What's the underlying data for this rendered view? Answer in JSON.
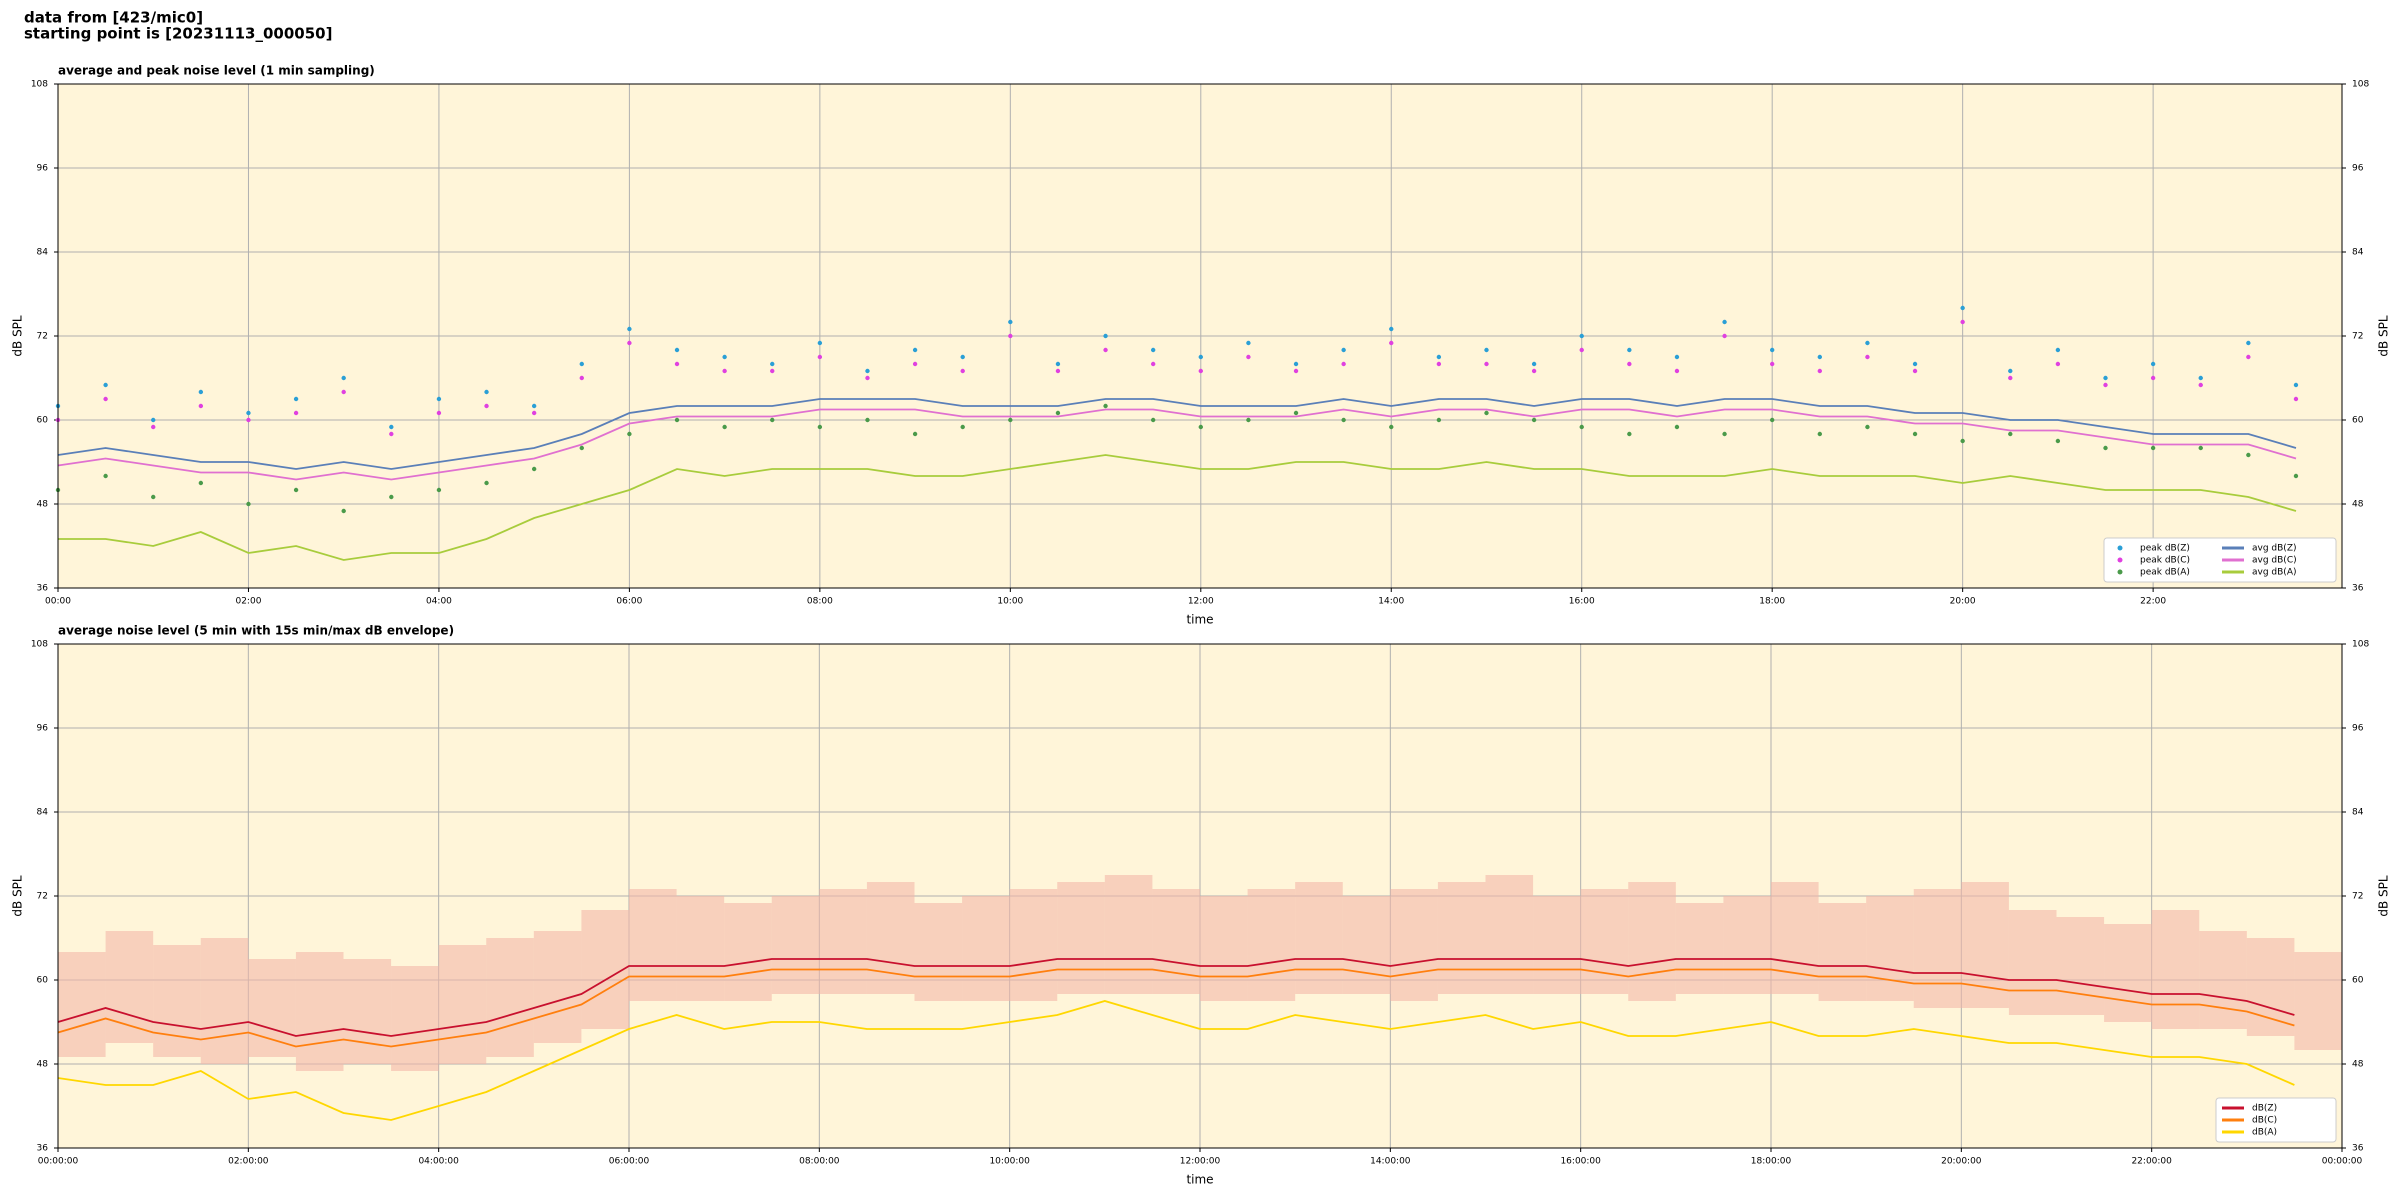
{
  "header": {
    "line1": "data from [423/mic0]",
    "line2": "starting point is [20231113_000050]"
  },
  "chart_data": [
    {
      "type": "line",
      "title": "average and peak noise level (1 min sampling)",
      "xlabel": "time",
      "ylabel": "dB SPL",
      "x": [
        "00:00",
        "00:30",
        "01:00",
        "01:30",
        "02:00",
        "02:30",
        "03:00",
        "03:30",
        "04:00",
        "04:30",
        "05:00",
        "05:30",
        "06:00",
        "06:30",
        "07:00",
        "07:30",
        "08:00",
        "08:30",
        "09:00",
        "09:30",
        "10:00",
        "10:30",
        "11:00",
        "11:30",
        "12:00",
        "12:30",
        "13:00",
        "13:30",
        "14:00",
        "14:30",
        "15:00",
        "15:30",
        "16:00",
        "16:30",
        "17:00",
        "17:30",
        "18:00",
        "18:30",
        "19:00",
        "19:30",
        "20:00",
        "20:30",
        "21:00",
        "21:30",
        "22:00",
        "22:30",
        "23:00",
        "23:30"
      ],
      "xlim": [
        "00:00",
        "23:59"
      ],
      "xticks": [
        "00:00",
        "02:00",
        "04:00",
        "06:00",
        "08:00",
        "10:00",
        "12:00",
        "14:00",
        "16:00",
        "18:00",
        "20:00",
        "22:00"
      ],
      "ylim": [
        36,
        108
      ],
      "yticks": [
        36,
        48,
        60,
        72,
        84,
        96,
        108
      ],
      "grid": true,
      "legend": "lower right",
      "legend_columns": 2,
      "series": [
        {
          "name": "peak dB(Z)",
          "kind": "scatter",
          "color": "#2a9fd6",
          "values": [
            62,
            65,
            60,
            64,
            61,
            63,
            66,
            59,
            63,
            64,
            62,
            68,
            73,
            70,
            69,
            68,
            71,
            67,
            70,
            69,
            74,
            68,
            72,
            70,
            69,
            71,
            68,
            70,
            73,
            69,
            70,
            68,
            72,
            70,
            69,
            74,
            70,
            69,
            71,
            68,
            76,
            67,
            70,
            66,
            68,
            66,
            71,
            65
          ]
        },
        {
          "name": "peak dB(C)",
          "kind": "scatter",
          "color": "#e040e0",
          "values": [
            60,
            63,
            59,
            62,
            60,
            61,
            64,
            58,
            61,
            62,
            61,
            66,
            71,
            68,
            67,
            67,
            69,
            66,
            68,
            67,
            72,
            67,
            70,
            68,
            67,
            69,
            67,
            68,
            71,
            68,
            68,
            67,
            70,
            68,
            67,
            72,
            68,
            67,
            69,
            67,
            74,
            66,
            68,
            65,
            66,
            65,
            69,
            63
          ]
        },
        {
          "name": "peak dB(A)",
          "kind": "scatter",
          "color": "#4a9a4a",
          "values": [
            50,
            52,
            49,
            51,
            48,
            50,
            47,
            49,
            50,
            51,
            53,
            56,
            58,
            60,
            59,
            60,
            59,
            60,
            58,
            59,
            60,
            61,
            62,
            60,
            59,
            60,
            61,
            60,
            59,
            60,
            61,
            60,
            59,
            58,
            59,
            58,
            60,
            58,
            59,
            58,
            57,
            58,
            57,
            56,
            56,
            56,
            55,
            52
          ]
        },
        {
          "name": "avg dB(Z)",
          "kind": "line",
          "color": "#5a7fb8",
          "values": [
            55,
            56,
            55,
            54,
            54,
            53,
            54,
            53,
            54,
            55,
            56,
            58,
            61,
            62,
            62,
            62,
            63,
            63,
            63,
            62,
            62,
            62,
            63,
            63,
            62,
            62,
            62,
            63,
            62,
            63,
            63,
            62,
            63,
            63,
            62,
            63,
            63,
            62,
            62,
            61,
            61,
            60,
            60,
            59,
            58,
            58,
            58,
            56
          ]
        },
        {
          "name": "avg dB(C)",
          "kind": "line",
          "color": "#e070d0",
          "values": [
            53.5,
            54.5,
            53.5,
            52.5,
            52.5,
            51.5,
            52.5,
            51.5,
            52.5,
            53.5,
            54.5,
            56.5,
            59.5,
            60.5,
            60.5,
            60.5,
            61.5,
            61.5,
            61.5,
            60.5,
            60.5,
            60.5,
            61.5,
            61.5,
            60.5,
            60.5,
            60.5,
            61.5,
            60.5,
            61.5,
            61.5,
            60.5,
            61.5,
            61.5,
            60.5,
            61.5,
            61.5,
            60.5,
            60.5,
            59.5,
            59.5,
            58.5,
            58.5,
            57.5,
            56.5,
            56.5,
            56.5,
            54.5
          ]
        },
        {
          "name": "avg dB(A)",
          "kind": "line",
          "color": "#a8cc3c",
          "values": [
            43,
            43,
            42,
            44,
            41,
            42,
            40,
            41,
            41,
            43,
            46,
            48,
            50,
            53,
            52,
            53,
            53,
            53,
            52,
            52,
            53,
            54,
            55,
            54,
            53,
            53,
            54,
            54,
            53,
            53,
            54,
            53,
            53,
            52,
            52,
            52,
            53,
            52,
            52,
            52,
            51,
            52,
            51,
            50,
            50,
            50,
            49,
            47
          ]
        }
      ]
    },
    {
      "type": "line",
      "title": "average noise level (5 min with 15s min/max dB envelope)",
      "xlabel": "time",
      "ylabel": "dB SPL",
      "x": [
        "00:00",
        "00:30",
        "01:00",
        "01:30",
        "02:00",
        "02:30",
        "03:00",
        "03:30",
        "04:00",
        "04:30",
        "05:00",
        "05:30",
        "06:00",
        "06:30",
        "07:00",
        "07:30",
        "08:00",
        "08:30",
        "09:00",
        "09:30",
        "10:00",
        "10:30",
        "11:00",
        "11:30",
        "12:00",
        "12:30",
        "13:00",
        "13:30",
        "14:00",
        "14:30",
        "15:00",
        "15:30",
        "16:00",
        "16:30",
        "17:00",
        "17:30",
        "18:00",
        "18:30",
        "19:00",
        "19:30",
        "20:00",
        "20:30",
        "21:00",
        "21:30",
        "22:00",
        "22:30",
        "23:00",
        "23:30"
      ],
      "xlim": [
        "00:00",
        "24:00"
      ],
      "xticks": [
        {
          "value": "00:00",
          "label": "00:00:00"
        },
        {
          "value": "02:00",
          "label": "02:00:00"
        },
        {
          "value": "04:00",
          "label": "04:00:00"
        },
        {
          "value": "06:00",
          "label": "06:00:00"
        },
        {
          "value": "08:00",
          "label": "08:00:00"
        },
        {
          "value": "10:00",
          "label": "10:00:00"
        },
        {
          "value": "12:00",
          "label": "12:00:00"
        },
        {
          "value": "14:00",
          "label": "14:00:00"
        },
        {
          "value": "16:00",
          "label": "16:00:00"
        },
        {
          "value": "18:00",
          "label": "18:00:00"
        },
        {
          "value": "20:00",
          "label": "20:00:00"
        },
        {
          "value": "22:00",
          "label": "22:00:00"
        },
        {
          "value": "24:00",
          "label": "00:00:00"
        }
      ],
      "ylim": [
        36,
        108
      ],
      "yticks": [
        36,
        48,
        60,
        72,
        84,
        96,
        108
      ],
      "grid": true,
      "legend": "lower right",
      "legend_columns": 1,
      "envelope": {
        "color": "#f4b8a8",
        "high": [
          64,
          67,
          65,
          66,
          63,
          64,
          63,
          62,
          65,
          66,
          67,
          70,
          73,
          72,
          71,
          72,
          73,
          74,
          71,
          72,
          73,
          74,
          75,
          73,
          72,
          73,
          74,
          72,
          73,
          74,
          75,
          72,
          73,
          74,
          71,
          72,
          74,
          71,
          72,
          73,
          74,
          70,
          69,
          68,
          70,
          67,
          66,
          64
        ],
        "low": [
          49,
          51,
          49,
          48,
          49,
          47,
          48,
          47,
          48,
          49,
          51,
          53,
          57,
          57,
          57,
          58,
          58,
          58,
          57,
          57,
          57,
          58,
          58,
          58,
          57,
          57,
          58,
          58,
          57,
          58,
          58,
          58,
          58,
          57,
          58,
          58,
          58,
          57,
          57,
          56,
          56,
          55,
          55,
          54,
          53,
          53,
          52,
          50
        ]
      },
      "series": [
        {
          "name": "dB(Z)",
          "kind": "line",
          "color": "#c8102e",
          "values": [
            54,
            56,
            54,
            53,
            54,
            52,
            53,
            52,
            53,
            54,
            56,
            58,
            62,
            62,
            62,
            63,
            63,
            63,
            62,
            62,
            62,
            63,
            63,
            63,
            62,
            62,
            63,
            63,
            62,
            63,
            63,
            63,
            63,
            62,
            63,
            63,
            63,
            62,
            62,
            61,
            61,
            60,
            60,
            59,
            58,
            58,
            57,
            55
          ]
        },
        {
          "name": "dB(C)",
          "kind": "line",
          "color": "#ff7f0e",
          "values": [
            52.5,
            54.5,
            52.5,
            51.5,
            52.5,
            50.5,
            51.5,
            50.5,
            51.5,
            52.5,
            54.5,
            56.5,
            60.5,
            60.5,
            60.5,
            61.5,
            61.5,
            61.5,
            60.5,
            60.5,
            60.5,
            61.5,
            61.5,
            61.5,
            60.5,
            60.5,
            61.5,
            61.5,
            60.5,
            61.5,
            61.5,
            61.5,
            61.5,
            60.5,
            61.5,
            61.5,
            61.5,
            60.5,
            60.5,
            59.5,
            59.5,
            58.5,
            58.5,
            57.5,
            56.5,
            56.5,
            55.5,
            53.5
          ]
        },
        {
          "name": "dB(A)",
          "kind": "line",
          "color": "#ffd700",
          "values": [
            46,
            45,
            45,
            47,
            43,
            44,
            41,
            40,
            42,
            44,
            47,
            50,
            53,
            55,
            53,
            54,
            54,
            53,
            53,
            53,
            54,
            55,
            57,
            55,
            53,
            53,
            55,
            54,
            53,
            54,
            55,
            53,
            54,
            52,
            52,
            53,
            54,
            52,
            52,
            53,
            52,
            51,
            51,
            50,
            49,
            49,
            48,
            45
          ]
        }
      ]
    }
  ]
}
